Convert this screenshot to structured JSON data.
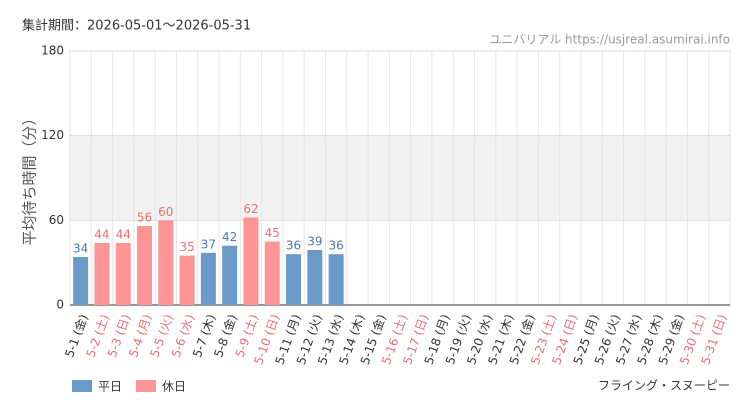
{
  "chart_data": {
    "type": "bar",
    "subtitle": "集計期間：2026-05-01～2026-05-31",
    "source": "ユニバリアル https://usjreal.asumirai.info",
    "y_label": "平均待ち時間（分）",
    "title": "フライング・スヌーピー",
    "categories": [
      "5-1 (金)",
      "5-2 (土)",
      "5-3 (日)",
      "5-4 (月)",
      "5-5 (火)",
      "5-6 (水)",
      "5-7 (木)",
      "5-8 (金)",
      "5-9 (土)",
      "5-10 (日)",
      "5-11 (月)",
      "5-12 (火)",
      "5-13 (水)",
      "5-14 (木)",
      "5-15 (金)",
      "5-16 (土)",
      "5-17 (日)",
      "5-18 (月)",
      "5-19 (火)",
      "5-20 (水)",
      "5-21 (木)",
      "5-22 (金)",
      "5-23 (土)",
      "5-24 (日)",
      "5-25 (月)",
      "5-26 (火)",
      "5-27 (水)",
      "5-28 (木)",
      "5-29 (金)",
      "5-30 (土)",
      "5-31 (日)"
    ],
    "category_colors": [
      "#333333",
      "#e87070",
      "#e87070",
      "#e87070",
      "#e87070",
      "#e87070",
      "#333333",
      "#333333",
      "#e87070",
      "#e87070",
      "#333333",
      "#333333",
      "#333333",
      "#333333",
      "#333333",
      "#e87070",
      "#e87070",
      "#333333",
      "#333333",
      "#333333",
      "#333333",
      "#333333",
      "#e87070",
      "#e87070",
      "#333333",
      "#333333",
      "#333333",
      "#333333",
      "#333333",
      "#e87070",
      "#e87070"
    ],
    "series": [
      {
        "name": "平日",
        "color": "#6a9ac8",
        "label_color": "#4a78ac",
        "values": [
          34,
          null,
          null,
          null,
          null,
          null,
          37,
          42,
          null,
          null,
          36,
          39,
          36,
          null,
          null,
          null,
          null,
          null,
          null,
          null,
          null,
          null,
          null,
          null,
          null,
          null,
          null,
          null,
          null,
          null,
          null
        ]
      },
      {
        "name": "休日",
        "color": "#ff9494",
        "label_color": "#e87070",
        "values": [
          null,
          44,
          44,
          56,
          60,
          35,
          null,
          null,
          62,
          45,
          null,
          null,
          null,
          null,
          null,
          null,
          null,
          null,
          null,
          null,
          null,
          null,
          null,
          null,
          null,
          null,
          null,
          null,
          null,
          null,
          null
        ]
      }
    ],
    "ylim": [
      0,
      180
    ],
    "yticks": [
      0,
      60,
      120,
      180
    ],
    "shaded_band": [
      60,
      120
    ],
    "grid": true
  }
}
